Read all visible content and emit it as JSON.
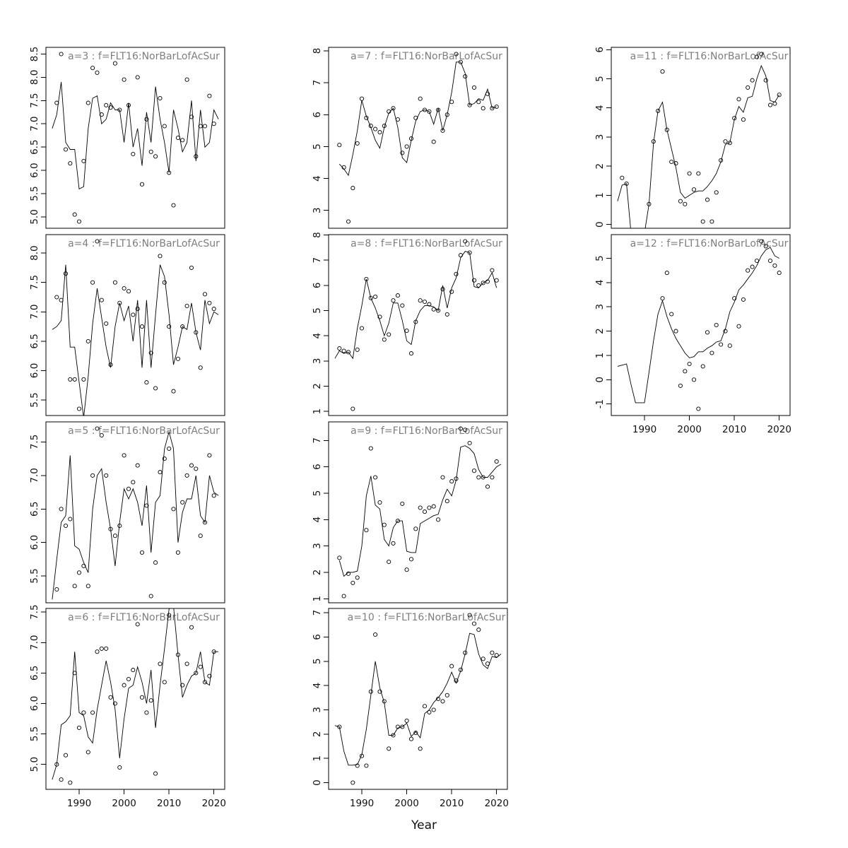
{
  "chart_data": {
    "type": "scatter",
    "description": "R multi-panel (4x3 mfrow) scatter plots of survey index vs Year with fitted line overlay, ages 3-12",
    "x_label": "Year",
    "x_ticks": [
      1990,
      2000,
      2010,
      2020
    ],
    "xlim": [
      1982.6,
      2022.4
    ],
    "point_years": [
      1985,
      1986,
      1987,
      1988,
      1989,
      1990,
      1991,
      1992,
      1993,
      1994,
      1995,
      1996,
      1997,
      1998,
      1999,
      2000,
      2001,
      2002,
      2003,
      2004,
      2005,
      2006,
      2007,
      2008,
      2009,
      2010,
      2011,
      2012,
      2013,
      2014,
      2015,
      2016,
      2017,
      2018,
      2019,
      2020
    ],
    "line_years": [
      1984,
      1985,
      1986,
      1987,
      1988,
      1989,
      1990,
      1991,
      1992,
      1993,
      1994,
      1995,
      1996,
      1997,
      1998,
      1999,
      2000,
      2001,
      2002,
      2003,
      2004,
      2005,
      2006,
      2007,
      2008,
      2009,
      2010,
      2011,
      2012,
      2013,
      2014,
      2015,
      2016,
      2017,
      2018,
      2019,
      2020,
      2021
    ],
    "colors": {
      "background": "#ffffff",
      "axis": "#000000",
      "line": "#000000",
      "point": "#000000",
      "panel_title": "#7e7e7e"
    },
    "legend": "none",
    "grid": "off",
    "point_style": "open-circle",
    "panels": [
      {
        "id": "a3",
        "title": "a=3 : f=FLT16:NorBarLofAcSur",
        "row": 0,
        "col": 0,
        "show_xaxis": false,
        "ylim": [
          4.756,
          8.644
        ],
        "yticks": [
          5.0,
          5.5,
          6.0,
          6.5,
          7.0,
          7.5,
          8.0,
          8.5
        ],
        "ytick_labels": [
          "5.0",
          "5.5",
          "6.0",
          "6.5",
          "7.0",
          "7.5",
          "8.0",
          "8.5"
        ],
        "points": [
          7.45,
          8.5,
          6.45,
          6.15,
          5.05,
          4.9,
          6.2,
          7.45,
          8.2,
          8.1,
          7.2,
          7.4,
          7.35,
          8.3,
          7.3,
          7.95,
          7.4,
          6.35,
          8.0,
          5.7,
          7.1,
          6.4,
          6.3,
          7.55,
          6.95,
          5.95,
          5.25,
          6.7,
          6.65,
          7.95,
          7.15,
          6.3,
          6.95,
          6.95,
          7.6,
          7.0
        ],
        "line": [
          6.9,
          7.2,
          7.9,
          6.6,
          6.45,
          6.45,
          5.6,
          5.65,
          6.9,
          7.55,
          7.6,
          7.0,
          7.1,
          7.45,
          7.3,
          7.3,
          6.6,
          7.45,
          6.5,
          6.9,
          6.1,
          7.25,
          6.6,
          7.8,
          7.1,
          6.6,
          5.95,
          7.3,
          6.9,
          6.4,
          6.6,
          7.5,
          6.2,
          7.3,
          6.5,
          6.6,
          7.3,
          7.1
        ]
      },
      {
        "id": "a4",
        "title": "a=4 : f=FLT16:NorBarLofAcSur",
        "row": 1,
        "col": 0,
        "show_xaxis": false,
        "ylim": [
          5.236,
          8.314
        ],
        "yticks": [
          5.5,
          6.0,
          6.5,
          7.0,
          7.5,
          8.0
        ],
        "ytick_labels": [
          "5.5",
          "6.0",
          "6.5",
          "7.0",
          "7.5",
          "8.0"
        ],
        "points": [
          7.25,
          7.2,
          7.65,
          5.85,
          5.85,
          5.35,
          5.85,
          6.5,
          7.5,
          8.2,
          7.2,
          6.8,
          6.1,
          7.5,
          7.15,
          7.4,
          7.35,
          6.95,
          7.05,
          6.75,
          5.8,
          6.3,
          5.7,
          7.95,
          7.5,
          6.75,
          5.65,
          6.2,
          6.75,
          7.1,
          7.75,
          6.65,
          6.05,
          7.3,
          7.15,
          7.05
        ],
        "line": [
          6.7,
          6.75,
          6.85,
          7.8,
          6.4,
          6.4,
          5.8,
          5.2,
          5.9,
          6.8,
          7.4,
          6.9,
          6.4,
          6.05,
          6.75,
          7.15,
          6.85,
          7.1,
          6.5,
          7.2,
          6.05,
          7.2,
          6.05,
          6.95,
          7.8,
          7.6,
          6.95,
          6.1,
          6.4,
          6.75,
          6.7,
          7.15,
          6.65,
          6.35,
          7.2,
          6.8,
          7.0,
          6.95
        ]
      },
      {
        "id": "a5",
        "title": "a=5 : f=FLT16:NorBarLofAcSur",
        "row": 2,
        "col": 0,
        "show_xaxis": false,
        "ylim": [
          5.1,
          7.8
        ],
        "yticks": [
          5.5,
          6.0,
          6.5,
          7.0,
          7.5
        ],
        "ytick_labels": [
          "5.5",
          "6.0",
          "6.5",
          "7.0",
          "7.5"
        ],
        "points": [
          5.3,
          6.5,
          6.25,
          6.35,
          5.35,
          5.55,
          5.65,
          5.35,
          7.0,
          7.7,
          7.6,
          7.0,
          6.2,
          6.1,
          6.25,
          7.3,
          6.8,
          6.9,
          7.15,
          5.85,
          6.55,
          5.2,
          5.7,
          7.05,
          7.25,
          7.4,
          6.5,
          5.85,
          6.6,
          7.0,
          7.15,
          7.1,
          6.1,
          6.3,
          7.3,
          6.7
        ],
        "line": [
          5.15,
          5.75,
          6.3,
          6.4,
          7.3,
          5.95,
          5.9,
          5.7,
          5.55,
          6.5,
          7.0,
          7.1,
          6.6,
          6.2,
          5.65,
          6.3,
          6.8,
          6.65,
          6.8,
          6.6,
          6.25,
          6.85,
          5.85,
          6.6,
          6.7,
          7.4,
          7.65,
          7.4,
          6.0,
          6.45,
          6.65,
          6.65,
          7.0,
          6.4,
          6.3,
          7.0,
          6.75,
          6.7
        ]
      },
      {
        "id": "a6",
        "title": "a=6 : f=FLT16:NorBarLofAcSur",
        "row": 3,
        "col": 0,
        "show_xaxis": true,
        "ylim": [
          4.59,
          7.56
        ],
        "yticks": [
          5.0,
          5.5,
          6.0,
          6.5,
          7.0,
          7.5
        ],
        "ytick_labels": [
          "5.0",
          "5.5",
          "6.0",
          "6.5",
          "7.0",
          "7.5"
        ],
        "points": [
          5.0,
          4.75,
          5.15,
          4.7,
          6.5,
          5.6,
          5.85,
          5.2,
          5.85,
          6.85,
          6.9,
          6.9,
          6.1,
          6.0,
          4.95,
          6.3,
          6.4,
          6.55,
          7.3,
          6.1,
          5.85,
          6.05,
          4.85,
          6.65,
          6.35,
          7.45,
          null,
          6.8,
          6.3,
          6.65,
          7.25,
          6.5,
          6.6,
          6.35,
          6.45,
          6.85
        ],
        "line": [
          4.75,
          5.0,
          5.65,
          5.7,
          5.8,
          6.85,
          5.85,
          5.8,
          5.45,
          5.35,
          5.9,
          6.3,
          6.7,
          6.35,
          5.9,
          5.1,
          5.75,
          6.25,
          6.3,
          6.6,
          6.35,
          6.0,
          6.55,
          5.6,
          6.3,
          6.9,
          7.55,
          7.6,
          6.8,
          6.1,
          6.3,
          6.45,
          6.5,
          6.85,
          6.35,
          6.3,
          6.85,
          6.85
        ]
      },
      {
        "id": "a7",
        "title": "a=7 : f=FLT16:NorBarLofAcSur",
        "row": 0,
        "col": 1,
        "show_xaxis": false,
        "ylim": [
          2.44,
          8.11
        ],
        "yticks": [
          3,
          4,
          5,
          6,
          7,
          8
        ],
        "ytick_labels": [
          "3",
          "4",
          "5",
          "6",
          "7",
          "8"
        ],
        "points": [
          5.05,
          4.35,
          2.65,
          3.7,
          5.1,
          6.5,
          5.9,
          5.65,
          5.55,
          5.45,
          5.65,
          6.1,
          6.2,
          5.85,
          4.8,
          5.0,
          5.25,
          5.9,
          6.5,
          6.15,
          6.1,
          5.15,
          6.15,
          5.5,
          6.0,
          6.4,
          7.9,
          7.65,
          7.2,
          6.3,
          6.85,
          6.4,
          6.2,
          6.65,
          6.2,
          6.25
        ],
        "line": [
          null,
          4.45,
          4.3,
          4.1,
          4.75,
          5.5,
          6.45,
          5.95,
          5.6,
          5.2,
          4.95,
          5.6,
          6.05,
          6.2,
          5.6,
          4.65,
          4.5,
          5.2,
          5.8,
          6.1,
          6.15,
          6.1,
          5.7,
          6.2,
          5.5,
          6.0,
          6.7,
          7.65,
          7.65,
          7.3,
          6.3,
          6.35,
          6.5,
          6.45,
          6.8,
          6.2,
          6.25,
          null
        ]
      },
      {
        "id": "a8",
        "title": "a=8 : f=FLT16:NorBarLofAcSur",
        "row": 1,
        "col": 1,
        "show_xaxis": false,
        "ylim": [
          0.834,
          8.016
        ],
        "yticks": [
          1,
          2,
          3,
          4,
          5,
          6,
          7,
          8
        ],
        "ytick_labels": [
          "1",
          "2",
          "3",
          "4",
          "5",
          "6",
          "7",
          "8"
        ],
        "points": [
          3.5,
          3.4,
          3.35,
          1.1,
          3.45,
          4.3,
          6.25,
          5.5,
          5.55,
          4.75,
          3.85,
          4.05,
          5.4,
          5.6,
          5.2,
          4.2,
          3.3,
          4.55,
          5.4,
          5.35,
          5.25,
          5.05,
          5.0,
          5.85,
          4.85,
          5.75,
          6.45,
          7.2,
          7.75,
          7.3,
          6.2,
          6.0,
          6.1,
          6.15,
          6.6,
          6.2
        ],
        "line": [
          3.1,
          3.4,
          3.3,
          3.35,
          3.1,
          4.3,
          5.2,
          6.25,
          5.5,
          5.1,
          4.6,
          4.0,
          4.5,
          5.3,
          5.3,
          4.6,
          3.8,
          3.65,
          4.6,
          5.0,
          5.2,
          5.2,
          5.15,
          5.0,
          6.0,
          5.1,
          5.9,
          6.3,
          7.1,
          7.35,
          7.3,
          5.95,
          5.9,
          6.1,
          6.2,
          6.5,
          5.9,
          null
        ]
      },
      {
        "id": "a9",
        "title": "a=9 : f=FLT16:NorBarLofAcSur",
        "row": 2,
        "col": 1,
        "show_xaxis": false,
        "ylim": [
          0.846,
          7.704
        ],
        "yticks": [
          1,
          2,
          3,
          4,
          5,
          6,
          7
        ],
        "ytick_labels": [
          "1",
          "2",
          "3",
          "4",
          "5",
          "6",
          "7"
        ],
        "points": [
          2.55,
          1.1,
          1.95,
          1.6,
          1.8,
          null,
          3.6,
          6.7,
          5.6,
          4.65,
          3.8,
          2.4,
          3.1,
          3.95,
          4.6,
          2.1,
          2.5,
          3.65,
          4.45,
          4.3,
          4.45,
          4.5,
          4.0,
          5.6,
          4.7,
          5.45,
          5.55,
          7.45,
          7.4,
          6.9,
          5.85,
          5.6,
          5.6,
          5.25,
          5.6,
          6.2
        ],
        "line": [
          null,
          2.45,
          1.85,
          2.0,
          2.0,
          2.05,
          3.0,
          4.9,
          5.65,
          4.55,
          4.4,
          3.25,
          3.0,
          3.7,
          3.95,
          3.95,
          2.8,
          2.75,
          2.75,
          3.85,
          3.95,
          4.05,
          4.15,
          4.2,
          4.75,
          5.15,
          4.9,
          5.5,
          6.75,
          6.8,
          6.7,
          6.5,
          5.9,
          5.6,
          5.6,
          5.8,
          6.0,
          6.1
        ]
      },
      {
        "id": "a10",
        "title": "a=10 : f=FLT16:NorBarLofAcSur",
        "row": 3,
        "col": 1,
        "show_xaxis": true,
        "ylim": [
          -0.276,
          7.176
        ],
        "yticks": [
          0,
          1,
          2,
          3,
          4,
          5,
          6,
          7
        ],
        "ytick_labels": [
          "0",
          "1",
          "2",
          "3",
          "4",
          "5",
          "6",
          "7"
        ],
        "points": [
          2.3,
          null,
          null,
          0.0,
          0.7,
          1.1,
          0.7,
          3.75,
          6.1,
          3.75,
          3.35,
          1.4,
          1.95,
          2.3,
          2.3,
          2.55,
          1.8,
          2.05,
          1.4,
          3.15,
          2.9,
          3.0,
          3.45,
          3.35,
          3.6,
          4.8,
          4.2,
          4.65,
          5.35,
          6.9,
          6.55,
          6.3,
          5.1,
          4.9,
          5.35,
          5.25
        ],
        "line": [
          2.35,
          2.3,
          1.3,
          0.72,
          0.72,
          0.75,
          1.15,
          2.2,
          3.6,
          5.0,
          3.9,
          3.3,
          1.95,
          1.95,
          2.25,
          2.3,
          2.45,
          1.9,
          2.1,
          1.85,
          2.85,
          3.0,
          3.3,
          3.5,
          3.75,
          4.1,
          4.55,
          4.1,
          4.6,
          5.3,
          6.15,
          6.1,
          5.3,
          4.85,
          4.7,
          5.2,
          5.15,
          5.3
        ]
      },
      {
        "id": "a11",
        "title": "a=11 : f=FLT16:NorBarLofAcSur",
        "row": 0,
        "col": 2,
        "show_xaxis": false,
        "ylim": [
          -0.13,
          6.08
        ],
        "yticks": [
          0,
          1,
          2,
          3,
          4,
          5,
          6
        ],
        "ytick_labels": [
          "0",
          "1",
          "2",
          "3",
          "4",
          "5",
          "6"
        ],
        "points": [
          1.6,
          1.4,
          null,
          null,
          null,
          null,
          0.7,
          2.85,
          3.9,
          5.25,
          3.25,
          2.15,
          2.1,
          0.8,
          0.7,
          1.75,
          1.2,
          1.75,
          0.1,
          0.85,
          0.1,
          1.1,
          2.2,
          2.85,
          2.8,
          3.65,
          4.3,
          3.6,
          4.7,
          4.95,
          5.75,
          5.85,
          4.95,
          4.1,
          4.15,
          4.45
        ],
        "line": [
          0.8,
          1.35,
          1.4,
          -0.3,
          -0.8,
          -0.9,
          -0.3,
          0.7,
          2.8,
          3.9,
          4.2,
          3.25,
          2.6,
          1.95,
          1.1,
          0.9,
          1.0,
          1.1,
          1.15,
          1.15,
          1.3,
          1.5,
          1.75,
          2.15,
          2.75,
          2.8,
          3.6,
          4.05,
          3.85,
          4.35,
          4.4,
          5.0,
          5.45,
          5.1,
          4.25,
          4.2,
          4.45,
          null
        ]
      },
      {
        "id": "a12",
        "title": "a=12 : f=FLT16:NorBarLofAcSur",
        "row": 1,
        "col": 2,
        "show_xaxis": true,
        "ylim": [
          -1.476,
          5.976
        ],
        "yticks": [
          -1,
          0,
          1,
          2,
          3,
          4,
          5
        ],
        "ytick_labels": [
          "-1",
          "0",
          "1",
          "2",
          "3",
          "4",
          "5"
        ],
        "points": [
          null,
          null,
          null,
          null,
          null,
          null,
          null,
          null,
          null,
          3.35,
          4.4,
          2.7,
          2.0,
          -0.25,
          0.35,
          0.65,
          0.0,
          -1.2,
          0.55,
          1.95,
          1.1,
          2.25,
          1.45,
          2.0,
          1.4,
          3.35,
          2.2,
          3.3,
          4.5,
          4.65,
          4.9,
          5.7,
          5.5,
          4.9,
          4.7,
          4.4
        ],
        "line": [
          0.55,
          0.6,
          0.65,
          -0.2,
          -0.95,
          -0.95,
          -0.95,
          0.3,
          1.6,
          2.7,
          3.25,
          2.6,
          2.1,
          1.7,
          1.4,
          1.1,
          0.9,
          0.95,
          1.15,
          1.15,
          1.3,
          1.4,
          1.55,
          1.6,
          2.1,
          2.8,
          3.2,
          3.7,
          3.9,
          4.15,
          4.4,
          4.7,
          5.1,
          5.35,
          5.45,
          5.1,
          5.0,
          null
        ]
      }
    ]
  }
}
